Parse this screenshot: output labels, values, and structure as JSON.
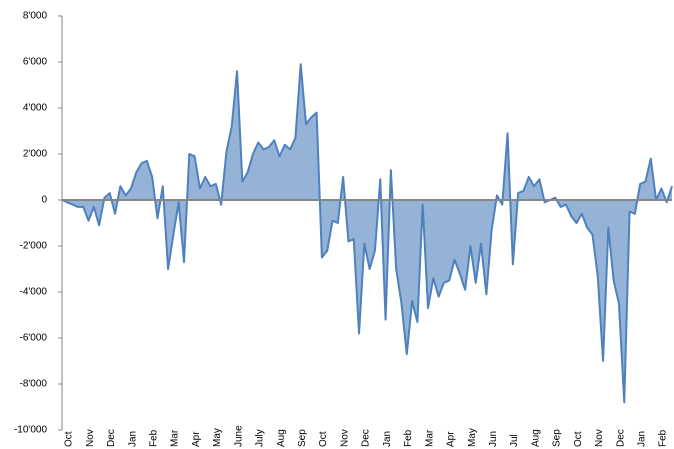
{
  "chart_data": {
    "type": "area",
    "categories": [
      "Oct",
      null,
      null,
      null,
      "Nov",
      null,
      null,
      null,
      "Dec",
      null,
      null,
      null,
      "Jan",
      null,
      null,
      null,
      "Feb",
      null,
      null,
      null,
      "Mar",
      null,
      null,
      null,
      "Apr",
      null,
      null,
      null,
      "May",
      null,
      null,
      null,
      "June",
      null,
      null,
      null,
      "July",
      null,
      null,
      null,
      "Aug",
      null,
      null,
      null,
      "Sep",
      null,
      null,
      null,
      "Oct",
      null,
      null,
      null,
      "Nov",
      null,
      null,
      null,
      "Dec",
      null,
      null,
      null,
      "Jan",
      null,
      null,
      null,
      "Feb",
      null,
      null,
      null,
      "Mar",
      null,
      null,
      null,
      "Apr",
      null,
      null,
      null,
      "May",
      null,
      null,
      null,
      "Jun",
      null,
      null,
      null,
      "Jul",
      null,
      null,
      null,
      "Aug",
      null,
      null,
      null,
      "Sep",
      null,
      null,
      null,
      "Oct",
      null,
      null,
      null,
      "Nov",
      null,
      null,
      null,
      "Dec",
      null,
      null,
      null,
      "Jan",
      null,
      null,
      null,
      "Feb",
      null,
      null,
      null
    ],
    "values": [
      0,
      -100,
      -200,
      -300,
      -300,
      -900,
      -300,
      -1100,
      100,
      300,
      -600,
      600,
      200,
      500,
      1200,
      1600,
      1700,
      1000,
      -800,
      600,
      -3000,
      -1500,
      -100,
      -2700,
      2000,
      1900,
      500,
      1000,
      600,
      700,
      -200,
      2100,
      3200,
      5600,
      800,
      1200,
      2000,
      2500,
      2200,
      2300,
      2600,
      1900,
      2400,
      2200,
      2700,
      5900,
      3300,
      3600,
      3800,
      -2500,
      -2200,
      -900,
      -1000,
      1000,
      -1800,
      -1700,
      -5800,
      -1900,
      -3000,
      -2200,
      900,
      -5200,
      1300,
      -3000,
      -4500,
      -6700,
      -4400,
      -5300,
      -200,
      -4700,
      -3400,
      -4200,
      -3600,
      -3500,
      -2600,
      -3200,
      -3900,
      -2000,
      -3600,
      -1900,
      -4100,
      -1300,
      200,
      -200,
      2900,
      -2800,
      300,
      400,
      1000,
      600,
      900,
      -100,
      0,
      100,
      -300,
      -200,
      -700,
      -1000,
      -600,
      -1200,
      -1500,
      -3300,
      -7000,
      -1200,
      -3500,
      -4500,
      -8800,
      -500,
      -600,
      700,
      800,
      1800,
      0,
      500,
      -100,
      600
    ],
    "color": "#4f81bd",
    "fill_color": "#95b3d7",
    "ylim": [
      -10000,
      8000
    ],
    "yticks": [
      {
        "value": -10000,
        "label": "-10'000"
      },
      {
        "value": -8000,
        "label": "-8'000"
      },
      {
        "value": -6000,
        "label": "-6'000"
      },
      {
        "value": -4000,
        "label": "-4'000"
      },
      {
        "value": -2000,
        "label": "-2'000"
      },
      0,
      {
        "value": 2000,
        "label": "2'000"
      },
      {
        "value": 4000,
        "label": "4'000"
      },
      {
        "value": 6000,
        "label": "6'000"
      },
      {
        "value": 8000,
        "label": "8'000"
      }
    ],
    "grid": false
  }
}
